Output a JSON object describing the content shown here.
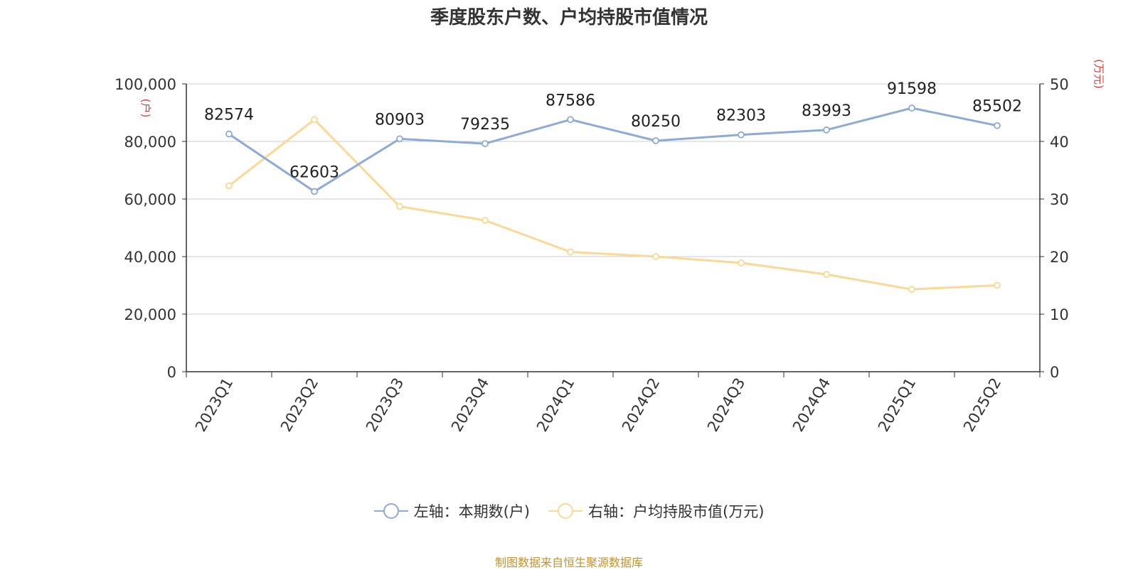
{
  "chart_data": {
    "type": "line",
    "title": "季度股东户数、户均持股市值情况",
    "categories": [
      "2023Q1",
      "2023Q2",
      "2023Q3",
      "2023Q4",
      "2024Q1",
      "2024Q2",
      "2024Q3",
      "2024Q4",
      "2025Q1",
      "2025Q2"
    ],
    "y_left": {
      "unit_label": "(户)",
      "range": [
        0,
        100000
      ],
      "ticks": [
        "0",
        "20,000",
        "40,000",
        "60,000",
        "80,000",
        "100,000"
      ]
    },
    "y_right": {
      "unit_label": "(万元)",
      "range": [
        0,
        50
      ],
      "ticks": [
        "0",
        "10",
        "20",
        "30",
        "40",
        "50"
      ]
    },
    "grid": true,
    "legend_position": "bottom",
    "series": [
      {
        "name": "左轴：本期数(户)",
        "axis": "left",
        "color": "#8eaad6",
        "values": [
          82574,
          62603,
          80903,
          79235,
          87586,
          80250,
          82303,
          83993,
          91598,
          85502
        ],
        "labels": [
          "82574",
          "62603",
          "80903",
          "79235",
          "87586",
          "80250",
          "82303",
          "83993",
          "91598",
          "85502"
        ]
      },
      {
        "name": "右轴：户均持股市值(万元)",
        "axis": "right",
        "color": "#fbd995",
        "values": [
          32.3,
          43.8,
          28.7,
          26.3,
          20.8,
          20.0,
          18.9,
          16.9,
          14.3,
          15.0
        ]
      }
    ]
  },
  "source": "制图数据来自恒生聚源数据库",
  "colors": {
    "axis_unit": "#e23b3b",
    "source": "#c8922a"
  }
}
